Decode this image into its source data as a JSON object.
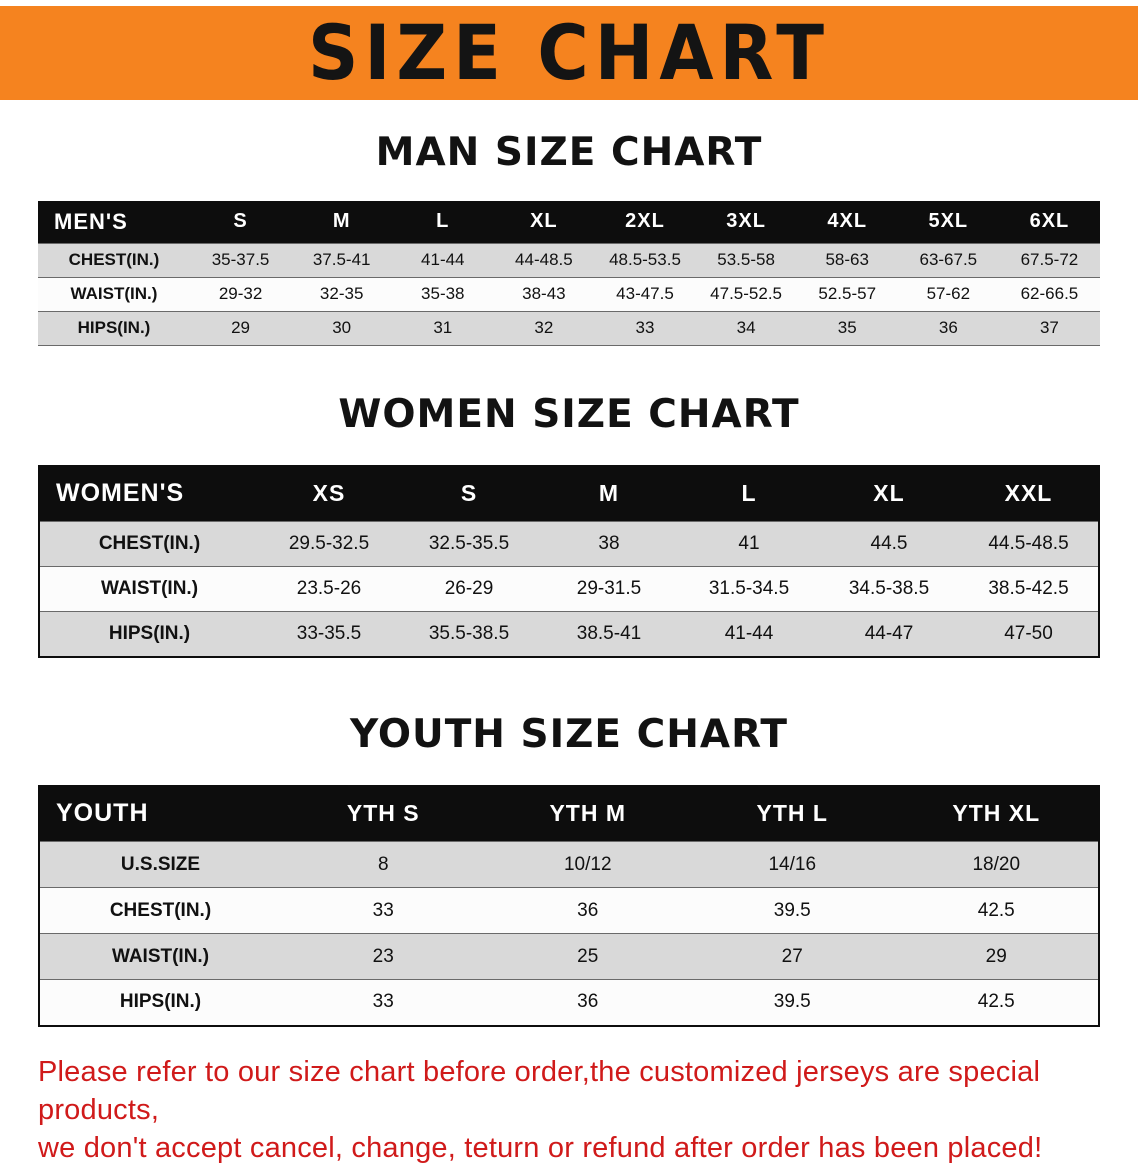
{
  "banner": {
    "title": "SIZE CHART",
    "bg_color": "#F5831F",
    "text_color": "#141414"
  },
  "men": {
    "heading": "MAN SIZE CHART",
    "table": {
      "header": [
        "MEN'S",
        "S",
        "M",
        "L",
        "XL",
        "2XL",
        "3XL",
        "4XL",
        "5XL",
        "6XL"
      ],
      "rows": [
        [
          "CHEST(IN.)",
          "35-37.5",
          "37.5-41",
          "41-44",
          "44-48.5",
          "48.5-53.5",
          "53.5-58",
          "58-63",
          "63-67.5",
          "67.5-72"
        ],
        [
          "WAIST(IN.)",
          "29-32",
          "32-35",
          "35-38",
          "38-43",
          "43-47.5",
          "47.5-52.5",
          "52.5-57",
          "57-62",
          "62-66.5"
        ],
        [
          "HIPS(IN.)",
          "29",
          "30",
          "31",
          "32",
          "33",
          "34",
          "35",
          "36",
          "37"
        ]
      ]
    }
  },
  "women": {
    "heading": "WOMEN SIZE CHART",
    "table": {
      "header": [
        "WOMEN'S",
        "XS",
        "S",
        "M",
        "L",
        "XL",
        "XXL"
      ],
      "rows": [
        [
          "CHEST(IN.)",
          "29.5-32.5",
          "32.5-35.5",
          "38",
          "41",
          "44.5",
          "44.5-48.5"
        ],
        [
          "WAIST(IN.)",
          "23.5-26",
          "26-29",
          "29-31.5",
          "31.5-34.5",
          "34.5-38.5",
          "38.5-42.5"
        ],
        [
          "HIPS(IN.)",
          "33-35.5",
          "35.5-38.5",
          "38.5-41",
          "41-44",
          "44-47",
          "47-50"
        ]
      ]
    }
  },
  "youth": {
    "heading": "YOUTH SIZE CHART",
    "table": {
      "header": [
        "YOUTH",
        "YTH S",
        "YTH M",
        "YTH L",
        "YTH XL"
      ],
      "rows": [
        [
          "U.S.SIZE",
          "8",
          "10/12",
          "14/16",
          "18/20"
        ],
        [
          "CHEST(IN.)",
          "33",
          "36",
          "39.5",
          "42.5"
        ],
        [
          "WAIST(IN.)",
          "23",
          "25",
          "27",
          "29"
        ],
        [
          "HIPS(IN.)",
          "33",
          "36",
          "39.5",
          "42.5"
        ]
      ]
    }
  },
  "notice": {
    "line1": "Please refer to our size chart before order,the customized jerseys are special products,",
    "line2": "we don't accept cancel, change, teturn or refund after order has been placed!",
    "color": "#d01a1a"
  }
}
